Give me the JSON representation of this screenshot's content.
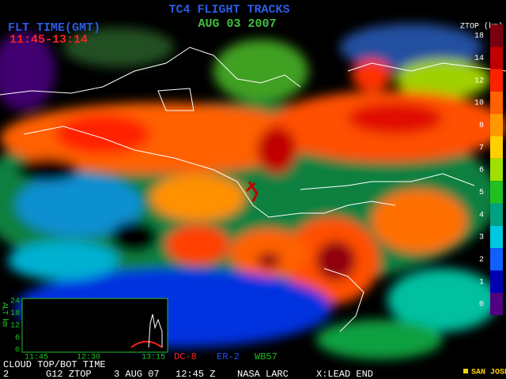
{
  "header": {
    "title": "TC4 FLIGHT TRACKS",
    "date": "AUG 03 2007",
    "time_label": "FLT TIME(GMT)",
    "time_range": "11:45-13:14"
  },
  "colorbar": {
    "title": "ZTOP (km)",
    "levels": [
      18,
      14,
      12,
      10,
      8,
      7,
      6,
      5,
      4,
      3,
      2,
      1,
      0
    ],
    "colors": [
      "#7a0010",
      "#c00000",
      "#ff2000",
      "#ff6000",
      "#ff9800",
      "#ffd000",
      "#a0e000",
      "#20c020",
      "#00a080",
      "#00c8e0",
      "#1060ff",
      "#0000b0",
      "#500080"
    ]
  },
  "inset": {
    "y_label": "ALT km",
    "yticks": [
      24,
      18,
      12,
      6,
      0
    ],
    "xticks": [
      "11:45",
      "12:30",
      "13:15"
    ]
  },
  "aircraft": [
    {
      "name": "DC-8",
      "color": "#ff2020"
    },
    {
      "name": "ER-2",
      "color": "#2050ff"
    },
    {
      "name": "WB57",
      "color": "#20c020"
    }
  ],
  "footer": {
    "caption": "CLOUD TOP/BOT TIME",
    "fields": [
      "2",
      "G12 ZTOP",
      "3 AUG 07",
      "12:45 Z",
      "NASA LARC",
      "X:LEAD END"
    ],
    "location": "SAN JOSE"
  }
}
